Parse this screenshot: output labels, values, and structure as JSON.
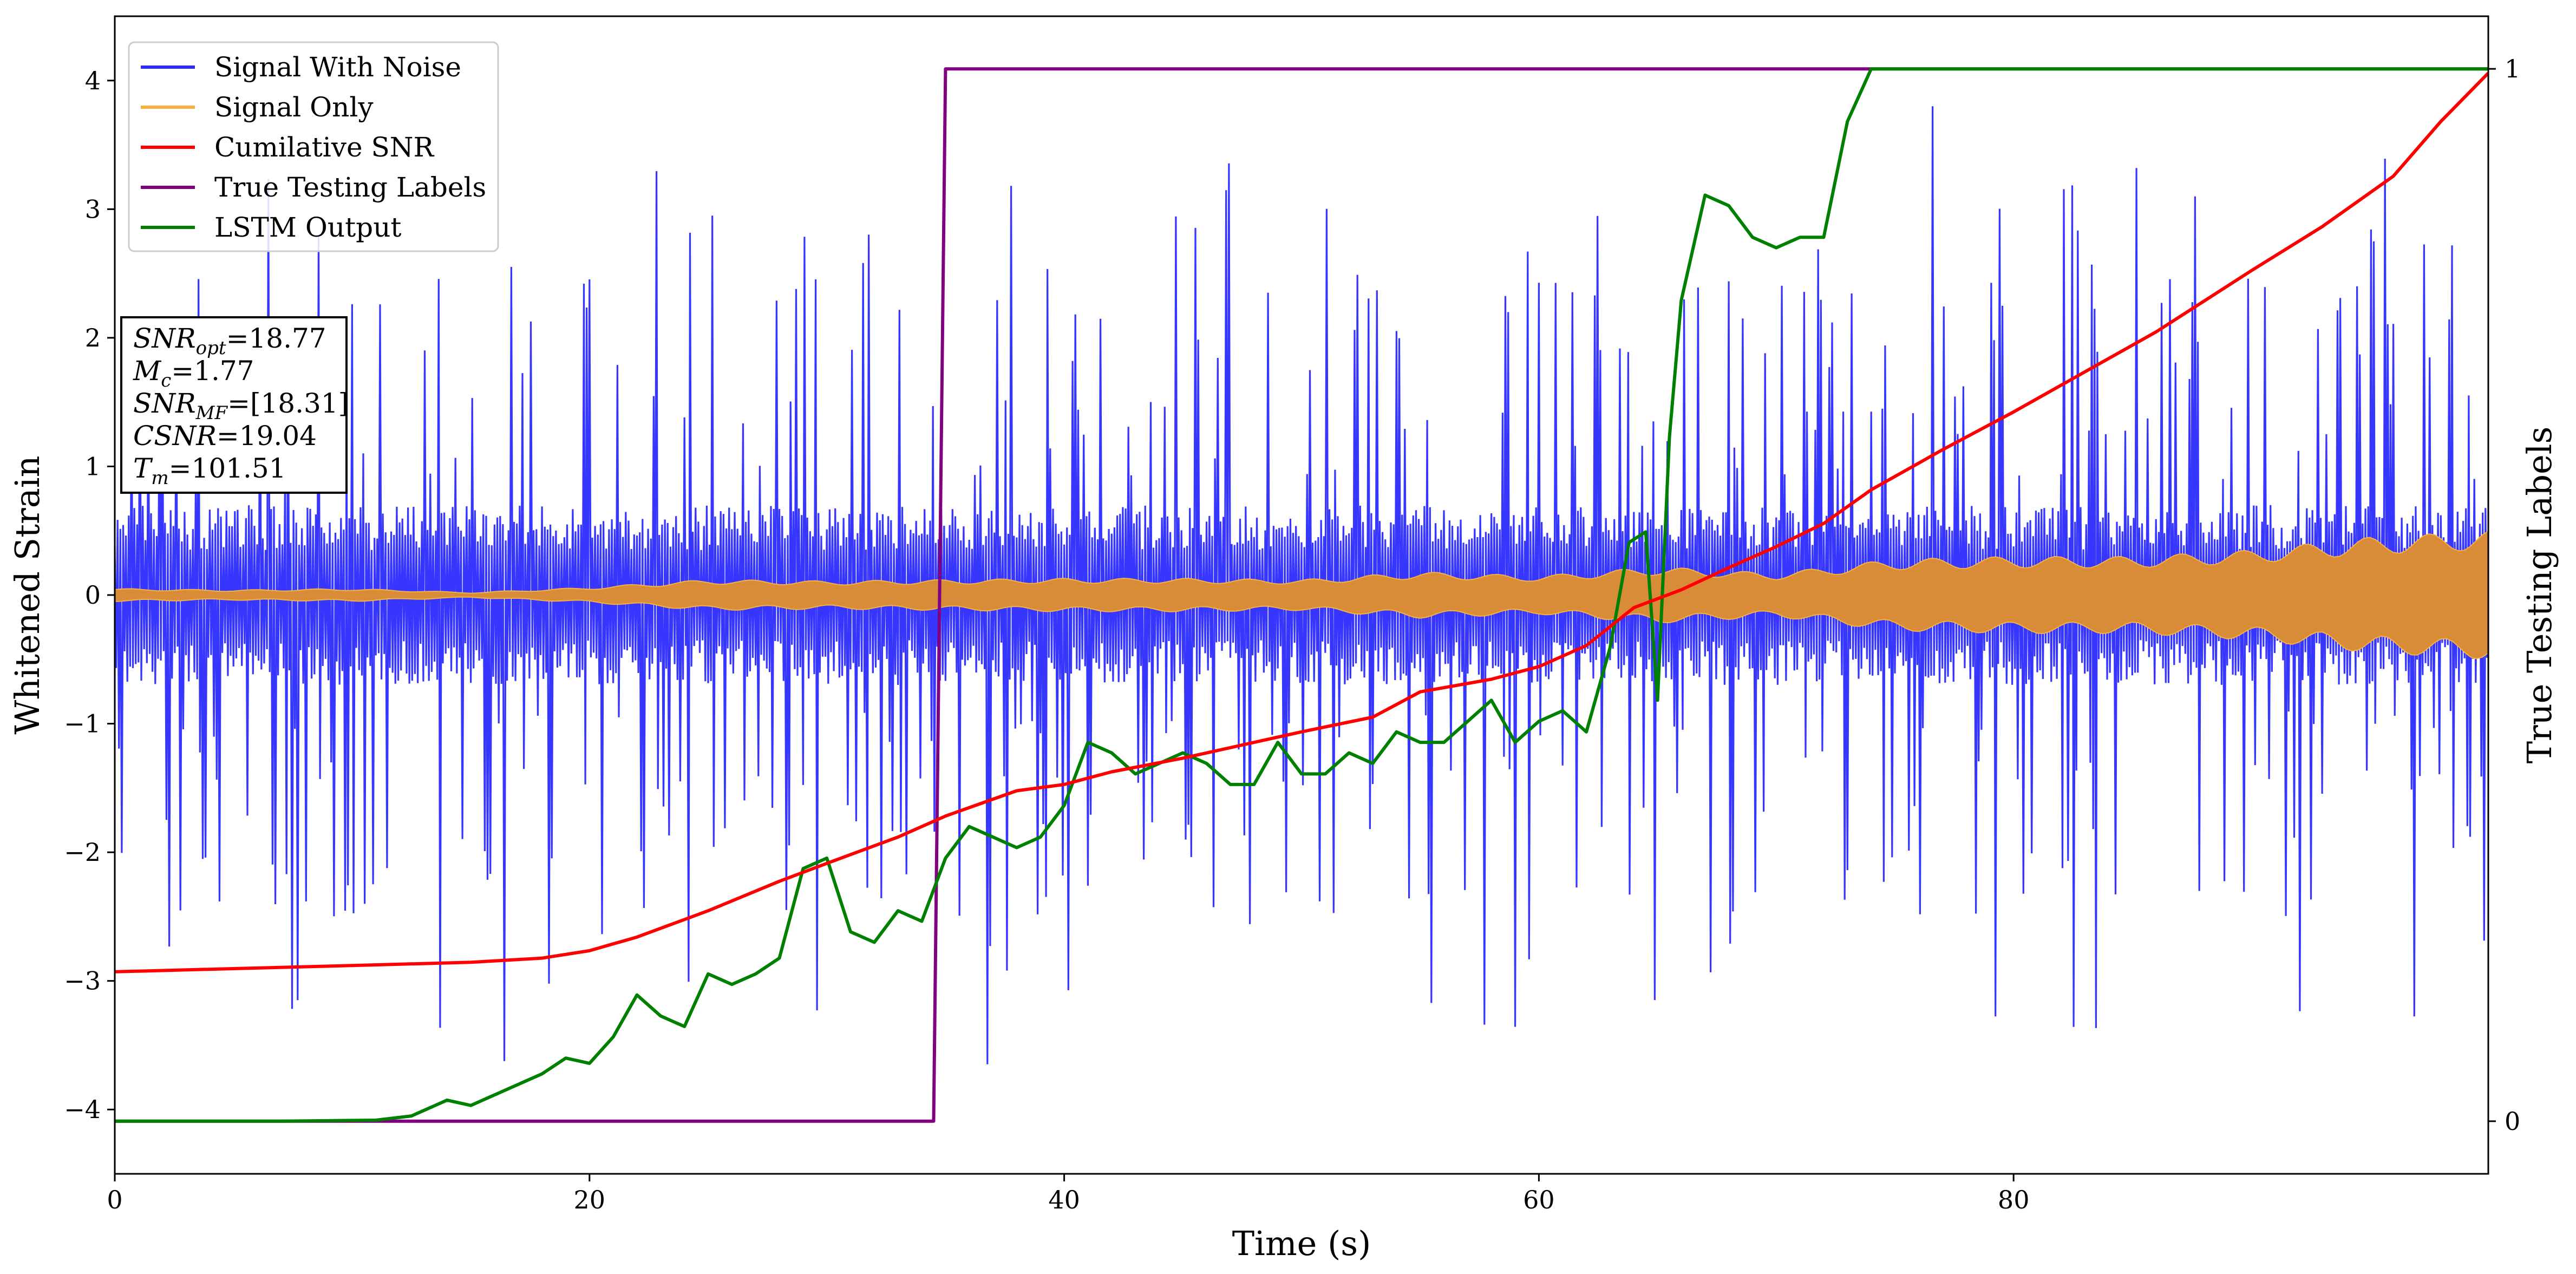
{
  "chart_data": {
    "type": "line",
    "xlabel": "Time (s)",
    "ylabel": "Whitened Strain",
    "y2label": "True Testing Labels",
    "xlim": [
      0,
      100
    ],
    "ylim": [
      -4.5,
      4.5
    ],
    "y2lim": [
      -0.05,
      1.05
    ],
    "x_ticks": [
      0,
      20,
      40,
      60,
      80
    ],
    "y_ticks": [
      -4,
      -3,
      -2,
      -1,
      0,
      1,
      2,
      3,
      4
    ],
    "y2_ticks": [
      0,
      1
    ],
    "grid": false,
    "legend_position": "upper-left",
    "legend": [
      {
        "label": "Signal With Noise",
        "color": "#2b2bff"
      },
      {
        "label": "Signal Only",
        "color": "#f5b041"
      },
      {
        "label": "Cumilative SNR",
        "color": "#ff0000"
      },
      {
        "label": "True Testing Labels",
        "color": "#800080"
      },
      {
        "label": "LSTM Output",
        "color": "#008000"
      }
    ],
    "annotation_box": [
      {
        "sym": "SNR",
        "sub": "opt",
        "val": "=18.77"
      },
      {
        "sym": "M",
        "sub": "c",
        "val": "=1.77"
      },
      {
        "sym": "SNR",
        "sub": "MF",
        "val": "=[18.31]"
      },
      {
        "sym": "CSNR",
        "sub": "",
        "val": "=19.04"
      },
      {
        "sym": "T",
        "sub": "m",
        "val": "=101.51"
      }
    ],
    "series": [
      {
        "name": "Signal With Noise",
        "axis": "left",
        "color": "#2b2bff",
        "kind": "noise",
        "approx_core_band": [
          -0.3,
          0.3
        ],
        "approx_spike_range": [
          -4.1,
          3.8
        ]
      },
      {
        "name": "Signal Only",
        "axis": "left",
        "color": "#f5b041",
        "kind": "envelope",
        "x": [
          0,
          5,
          10,
          15,
          20,
          25,
          30,
          35,
          40,
          45,
          50,
          55,
          60,
          65,
          70,
          75,
          80,
          85,
          90,
          95,
          100
        ],
        "amplitude": [
          0.05,
          0.04,
          0.05,
          0.02,
          0.06,
          0.12,
          0.11,
          0.12,
          0.13,
          0.13,
          0.12,
          0.18,
          0.15,
          0.22,
          0.17,
          0.28,
          0.3,
          0.3,
          0.35,
          0.45,
          0.5
        ]
      },
      {
        "name": "Cumilative SNR",
        "axis": "right",
        "color": "#ff0000",
        "x": [
          0,
          5,
          10,
          15,
          18,
          20,
          22,
          25,
          28,
          30,
          33,
          35,
          38,
          40,
          42,
          45,
          50,
          53,
          55,
          58,
          60,
          62,
          64,
          66,
          68,
          70,
          72,
          74,
          77,
          80,
          83,
          86,
          90,
          93,
          96,
          98,
          100
        ],
        "values": [
          0.142,
          0.145,
          0.148,
          0.151,
          0.155,
          0.162,
          0.175,
          0.2,
          0.228,
          0.245,
          0.27,
          0.29,
          0.314,
          0.32,
          0.332,
          0.345,
          0.37,
          0.384,
          0.408,
          0.42,
          0.432,
          0.452,
          0.488,
          0.505,
          0.526,
          0.546,
          0.568,
          0.6,
          0.638,
          0.674,
          0.712,
          0.75,
          0.808,
          0.85,
          0.898,
          0.95,
          0.996
        ]
      },
      {
        "name": "True Testing Labels",
        "axis": "right",
        "color": "#800080",
        "x": [
          0,
          34.5,
          35,
          100
        ],
        "values": [
          0,
          0,
          1,
          1
        ]
      },
      {
        "name": "LSTM Output",
        "axis": "right",
        "color": "#008000",
        "x": [
          0,
          7,
          11,
          12.5,
          14,
          15,
          16,
          17,
          18,
          19,
          20,
          21,
          22,
          23,
          24,
          25,
          26,
          27,
          28,
          29,
          30,
          31,
          32,
          33,
          34,
          35,
          36,
          37,
          38,
          39,
          40,
          41,
          42,
          43,
          44,
          45,
          46,
          47,
          48,
          49,
          50,
          51,
          52,
          53,
          54,
          55,
          56,
          57,
          58,
          59,
          60,
          61,
          62,
          63,
          63.8,
          64.5,
          65,
          65.5,
          66,
          67,
          68,
          69,
          70,
          71,
          72,
          73,
          74,
          75,
          76,
          77,
          80,
          90,
          100
        ],
        "values": [
          0,
          0,
          0.001,
          0.005,
          0.02,
          0.015,
          0.025,
          0.035,
          0.045,
          0.06,
          0.055,
          0.08,
          0.12,
          0.1,
          0.09,
          0.14,
          0.13,
          0.14,
          0.155,
          0.24,
          0.25,
          0.18,
          0.17,
          0.2,
          0.19,
          0.25,
          0.28,
          0.27,
          0.26,
          0.27,
          0.3,
          0.36,
          0.35,
          0.33,
          0.34,
          0.35,
          0.34,
          0.32,
          0.32,
          0.36,
          0.33,
          0.33,
          0.35,
          0.34,
          0.37,
          0.36,
          0.36,
          0.38,
          0.4,
          0.36,
          0.38,
          0.39,
          0.37,
          0.45,
          0.55,
          0.56,
          0.4,
          0.65,
          0.78,
          0.88,
          0.87,
          0.84,
          0.83,
          0.84,
          0.84,
          0.95,
          1.0,
          1.0,
          1.0,
          1.0,
          1.0,
          1.0,
          1.0
        ]
      }
    ]
  }
}
